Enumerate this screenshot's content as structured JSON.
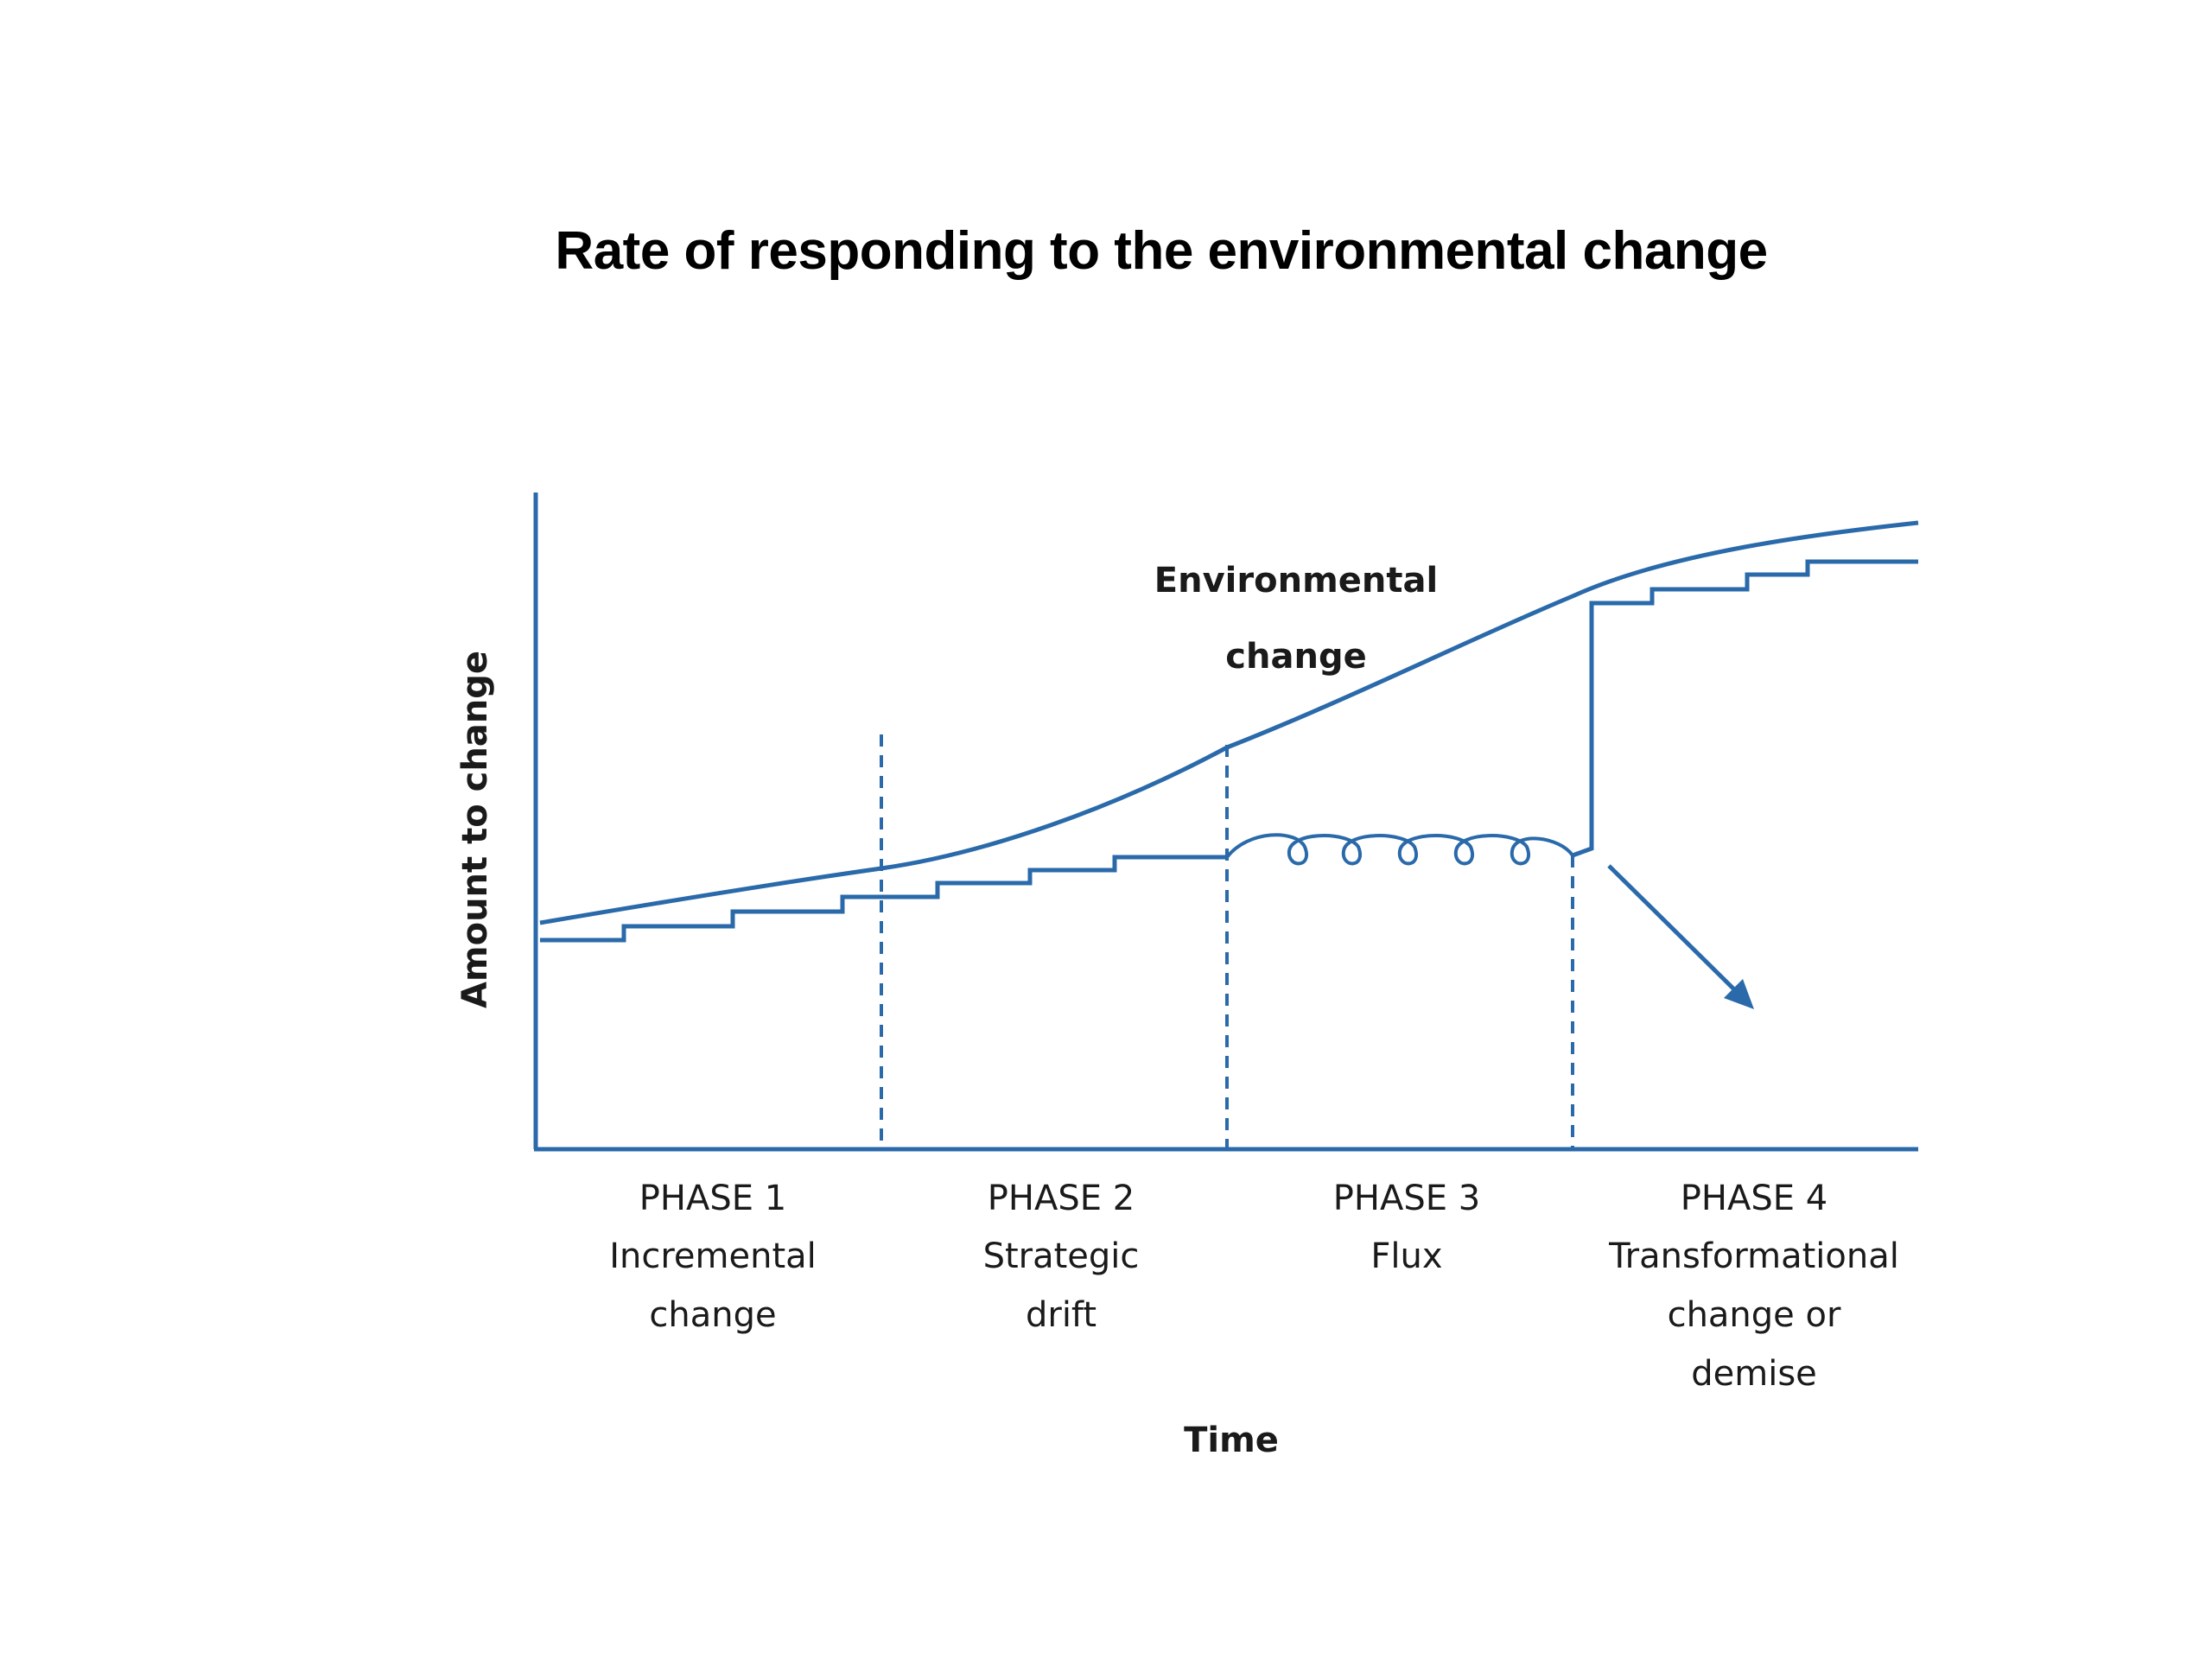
{
  "title": "Rate of responding to the environmental change",
  "diagram": {
    "y_axis_label": "Amount to change",
    "x_axis_label": "Time",
    "curve_label": {
      "line1": "Environmental",
      "line2": "change"
    },
    "phases": [
      {
        "number": "PHASE 1",
        "line1": "Incremental",
        "line2": "change",
        "line3": ""
      },
      {
        "number": "PHASE 2",
        "line1": "Strategic",
        "line2": "drift",
        "line3": ""
      },
      {
        "number": "PHASE 3",
        "line1": "Flux",
        "line2": "",
        "line3": ""
      },
      {
        "number": "PHASE 4",
        "line1": "Transformational",
        "line2": "change or",
        "line3": "demise"
      }
    ],
    "colors": {
      "line": "#2a6aaa",
      "text": "#1a1a1a"
    }
  }
}
